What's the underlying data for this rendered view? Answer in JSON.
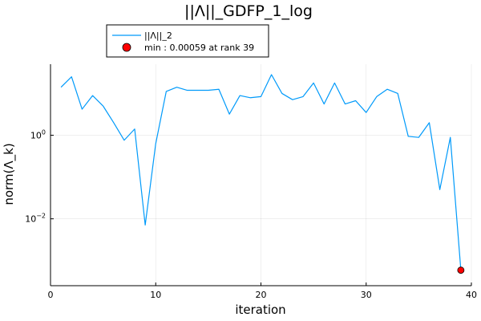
{
  "chart_data": {
    "type": "line",
    "title": "||Λ||_GDFP_1_log",
    "xlabel": "iteration",
    "ylabel": "norm(Λ_k)",
    "xlim": [
      0,
      40
    ],
    "ylim_log10": [
      -3.6,
      1.7
    ],
    "yscale": "log",
    "grid": true,
    "legend_position": "top-left",
    "x_ticks": [
      {
        "value": 0,
        "label": "0"
      },
      {
        "value": 10,
        "label": "10"
      },
      {
        "value": 20,
        "label": "20"
      },
      {
        "value": 30,
        "label": "30"
      },
      {
        "value": 40,
        "label": "40"
      }
    ],
    "y_ticks": [
      {
        "value": 1,
        "base": "10",
        "exp": "0"
      },
      {
        "value": 0.01,
        "base": "10",
        "exp": "−2"
      }
    ],
    "series": [
      {
        "name": "||Λ||_2",
        "color": "#009AFA",
        "x": [
          1,
          2,
          3,
          4,
          5,
          6,
          7,
          8,
          9,
          10,
          11,
          12,
          13,
          14,
          15,
          16,
          17,
          18,
          19,
          20,
          21,
          22,
          23,
          24,
          25,
          26,
          27,
          28,
          29,
          30,
          31,
          32,
          33,
          34,
          35,
          36,
          37,
          38,
          39
        ],
        "y": [
          14.1,
          25.1,
          4.2,
          8.9,
          5.0,
          2.0,
          0.76,
          1.41,
          0.0071,
          0.63,
          11.2,
          14.1,
          11.9,
          11.9,
          11.9,
          12.6,
          3.2,
          8.9,
          7.9,
          8.4,
          28.2,
          10.0,
          7.1,
          8.4,
          17.8,
          5.6,
          17.8,
          5.6,
          6.7,
          3.5,
          8.4,
          12.6,
          10.0,
          0.94,
          0.89,
          2.0,
          0.05,
          0.89,
          0.00059
        ]
      }
    ],
    "marker": {
      "name": "min : 0.00059 at rank 39",
      "x": 39,
      "y": 0.00059,
      "color": "#FF0000"
    }
  }
}
